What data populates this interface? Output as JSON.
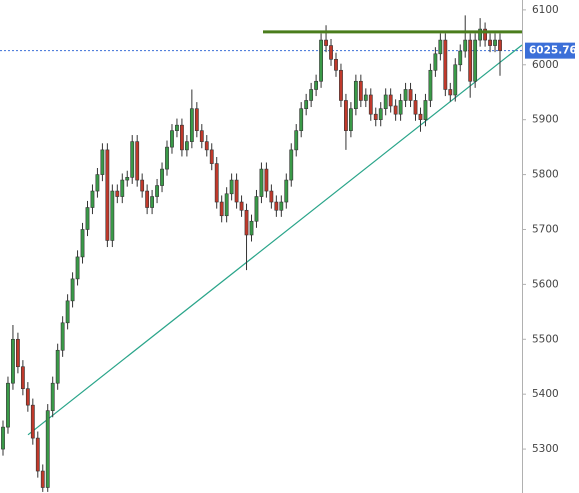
{
  "chart_data": {
    "type": "candlestick",
    "ylim": [
      5220,
      6118
    ],
    "yticks": [
      5300,
      5400,
      5500,
      5600,
      5700,
      5800,
      5900,
      6000,
      6100
    ],
    "up_color": "#3a9a48",
    "down_color": "#c0392b",
    "open": [
      5300,
      5340,
      5420,
      5500,
      5450,
      5410,
      5380,
      5320,
      5260,
      5230,
      5370,
      5420,
      5480,
      5530,
      5570,
      5610,
      5650,
      5700,
      5740,
      5770,
      5800,
      5845,
      5680,
      5770,
      5760,
      5790,
      5795,
      5860,
      5790,
      5770,
      5740,
      5760,
      5780,
      5810,
      5850,
      5880,
      5890,
      5845,
      5860,
      5920,
      5880,
      5860,
      5845,
      5820,
      5750,
      5725,
      5765,
      5790,
      5750,
      5735,
      5690,
      5715,
      5760,
      5810,
      5770,
      5750,
      5735,
      5750,
      5790,
      5845,
      5880,
      5920,
      5935,
      5955,
      5970,
      6045,
      6035,
      6010,
      5990,
      5935,
      5880,
      5920,
      5970,
      5935,
      5945,
      5910,
      5900,
      5920,
      5945,
      5925,
      5910,
      5935,
      5955,
      5935,
      5910,
      5900,
      5935,
      5990,
      6020,
      6045,
      5955,
      5945,
      6000,
      6025,
      6045,
      5970,
      6045,
      6065,
      6045,
      6035,
      6045
    ],
    "high": [
      5352,
      5432,
      5526,
      5512,
      5462,
      5422,
      5392,
      5332,
      5272,
      5382,
      5432,
      5492,
      5542,
      5582,
      5622,
      5662,
      5712,
      5752,
      5782,
      5812,
      5857,
      5857,
      5782,
      5782,
      5802,
      5807,
      5872,
      5872,
      5802,
      5782,
      5772,
      5792,
      5822,
      5862,
      5892,
      5902,
      5902,
      5872,
      5955,
      5932,
      5892,
      5872,
      5857,
      5832,
      5762,
      5777,
      5802,
      5802,
      5762,
      5747,
      5727,
      5772,
      5822,
      5822,
      5782,
      5762,
      5762,
      5802,
      5857,
      5892,
      5932,
      5947,
      5967,
      5982,
      6057,
      6072,
      6047,
      6022,
      6002,
      5947,
      5932,
      5982,
      5982,
      5957,
      5957,
      5922,
      5932,
      5957,
      5957,
      5937,
      5947,
      5967,
      5967,
      5947,
      5922,
      5947,
      6002,
      6032,
      6057,
      6057,
      5967,
      6012,
      6037,
      6090,
      6057,
      6057,
      6085,
      6077,
      6057,
      6057,
      6057
    ],
    "low": [
      5288,
      5328,
      5408,
      5438,
      5398,
      5368,
      5308,
      5248,
      5222,
      5222,
      5358,
      5408,
      5468,
      5518,
      5558,
      5598,
      5638,
      5688,
      5728,
      5758,
      5788,
      5668,
      5668,
      5748,
      5748,
      5778,
      5783,
      5778,
      5758,
      5728,
      5728,
      5748,
      5768,
      5798,
      5838,
      5868,
      5833,
      5833,
      5848,
      5868,
      5848,
      5833,
      5808,
      5738,
      5713,
      5713,
      5753,
      5738,
      5723,
      5626,
      5678,
      5703,
      5748,
      5758,
      5738,
      5723,
      5723,
      5738,
      5778,
      5833,
      5868,
      5908,
      5923,
      5943,
      5958,
      6023,
      5998,
      5978,
      5923,
      5845,
      5868,
      5908,
      5923,
      5923,
      5898,
      5888,
      5888,
      5908,
      5913,
      5898,
      5898,
      5923,
      5923,
      5898,
      5878,
      5888,
      5923,
      5978,
      6008,
      5943,
      5933,
      5933,
      5988,
      6013,
      5940,
      5958,
      6033,
      6033,
      6023,
      6023,
      5980
    ],
    "close": [
      5340,
      5420,
      5500,
      5450,
      5410,
      5380,
      5320,
      5260,
      5230,
      5370,
      5420,
      5480,
      5530,
      5570,
      5610,
      5650,
      5700,
      5740,
      5770,
      5800,
      5845,
      5680,
      5770,
      5760,
      5790,
      5795,
      5860,
      5790,
      5770,
      5740,
      5760,
      5780,
      5810,
      5850,
      5880,
      5890,
      5845,
      5860,
      5920,
      5880,
      5860,
      5845,
      5820,
      5750,
      5725,
      5765,
      5790,
      5750,
      5735,
      5690,
      5715,
      5760,
      5810,
      5770,
      5750,
      5735,
      5750,
      5790,
      5845,
      5880,
      5920,
      5935,
      5955,
      5970,
      6045,
      6035,
      6010,
      5990,
      5935,
      5880,
      5920,
      5970,
      5935,
      5945,
      5910,
      5900,
      5920,
      5945,
      5925,
      5910,
      5935,
      5955,
      5935,
      5910,
      5900,
      5935,
      5990,
      6020,
      6045,
      5955,
      5945,
      6000,
      6025,
      6045,
      5970,
      6045,
      6065,
      6045,
      6035,
      6045,
      6025.76
    ],
    "last_price": 6025.76,
    "last_price_color": "#3b6fd8",
    "resistance": 6060,
    "resistance_color": "#4a7d1c",
    "trendline": {
      "start": 5326,
      "end": 6036
    },
    "trendline_color": "#2aa58a"
  }
}
